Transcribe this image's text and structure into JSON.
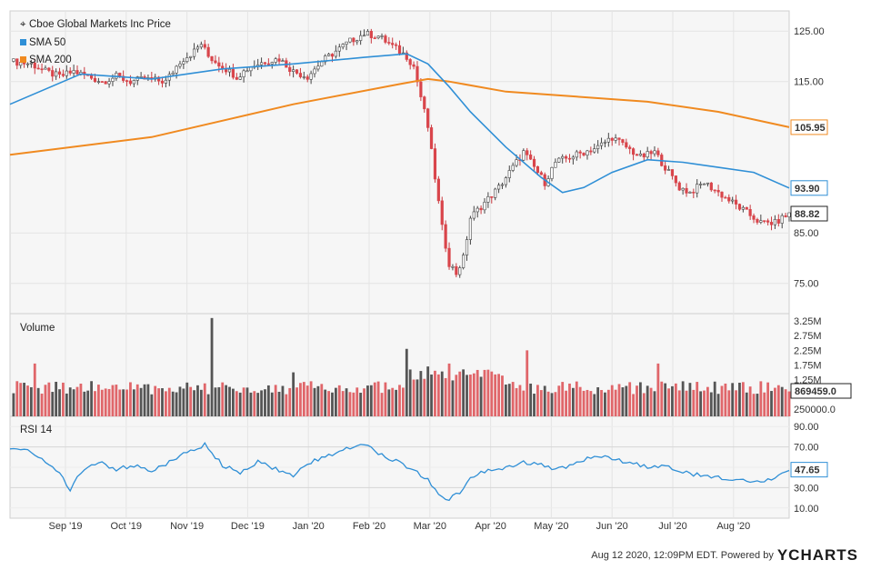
{
  "chart_data": {
    "type": "candlestick",
    "title": "Cboe Global Markets Inc Price",
    "legend": [
      {
        "name": "SMA 50",
        "color": "#2f8fd6"
      },
      {
        "name": "SMA 200",
        "color": "#f08a20"
      }
    ],
    "x_ticks": [
      "Sep '19",
      "Oct '19",
      "Nov '19",
      "Dec '19",
      "Jan '20",
      "Feb '20",
      "Mar '20",
      "Apr '20",
      "May '20",
      "Jun '20",
      "Jul '20",
      "Aug '20"
    ],
    "price_axis": {
      "ticks": [
        "125.00",
        "115.00",
        "85.00",
        "75.00"
      ],
      "ylim": [
        69,
        129
      ]
    },
    "price_series": {
      "close": [
        {
          "x": 0,
          "y": 119
        },
        {
          "x": 6,
          "y": 118.5
        },
        {
          "x": 10,
          "y": 117
        },
        {
          "x": 14,
          "y": 116
        },
        {
          "x": 18,
          "y": 117
        },
        {
          "x": 22,
          "y": 116
        },
        {
          "x": 26,
          "y": 115
        },
        {
          "x": 30,
          "y": 116
        },
        {
          "x": 34,
          "y": 115
        },
        {
          "x": 38,
          "y": 115.5
        },
        {
          "x": 44,
          "y": 115
        },
        {
          "x": 48,
          "y": 119
        },
        {
          "x": 52,
          "y": 121
        },
        {
          "x": 54,
          "y": 122.5
        },
        {
          "x": 56,
          "y": 120
        },
        {
          "x": 60,
          "y": 118
        },
        {
          "x": 64,
          "y": 116
        },
        {
          "x": 68,
          "y": 118
        },
        {
          "x": 72,
          "y": 119
        },
        {
          "x": 76,
          "y": 119.5
        },
        {
          "x": 80,
          "y": 117
        },
        {
          "x": 84,
          "y": 116
        },
        {
          "x": 88,
          "y": 119
        },
        {
          "x": 92,
          "y": 121
        },
        {
          "x": 96,
          "y": 123
        },
        {
          "x": 100,
          "y": 124.5
        },
        {
          "x": 104,
          "y": 124
        },
        {
          "x": 108,
          "y": 122
        },
        {
          "x": 112,
          "y": 120
        },
        {
          "x": 114,
          "y": 118
        },
        {
          "x": 116,
          "y": 112
        },
        {
          "x": 118,
          "y": 106
        },
        {
          "x": 120,
          "y": 96
        },
        {
          "x": 122,
          "y": 86
        },
        {
          "x": 124,
          "y": 79
        },
        {
          "x": 126,
          "y": 77
        },
        {
          "x": 128,
          "y": 80
        },
        {
          "x": 130,
          "y": 88
        },
        {
          "x": 134,
          "y": 91
        },
        {
          "x": 138,
          "y": 94
        },
        {
          "x": 142,
          "y": 98
        },
        {
          "x": 145,
          "y": 101
        },
        {
          "x": 148,
          "y": 98
        },
        {
          "x": 151,
          "y": 95
        },
        {
          "x": 154,
          "y": 99
        },
        {
          "x": 158,
          "y": 100
        },
        {
          "x": 162,
          "y": 101
        },
        {
          "x": 166,
          "y": 102
        },
        {
          "x": 170,
          "y": 104
        },
        {
          "x": 174,
          "y": 102
        },
        {
          "x": 178,
          "y": 100
        },
        {
          "x": 182,
          "y": 101
        },
        {
          "x": 184,
          "y": 99
        },
        {
          "x": 186,
          "y": 97
        },
        {
          "x": 189,
          "y": 94
        },
        {
          "x": 192,
          "y": 93
        },
        {
          "x": 196,
          "y": 95
        },
        {
          "x": 200,
          "y": 93
        },
        {
          "x": 204,
          "y": 91
        },
        {
          "x": 208,
          "y": 89
        },
        {
          "x": 212,
          "y": 87
        },
        {
          "x": 216,
          "y": 87
        },
        {
          "x": 220,
          "y": 88.82
        }
      ],
      "sma50": [
        {
          "x": 0,
          "y": 110.5
        },
        {
          "x": 20,
          "y": 116.5
        },
        {
          "x": 40,
          "y": 115.5
        },
        {
          "x": 60,
          "y": 117.5
        },
        {
          "x": 80,
          "y": 118.5
        },
        {
          "x": 100,
          "y": 119.8
        },
        {
          "x": 112,
          "y": 120.5
        },
        {
          "x": 118,
          "y": 118.5
        },
        {
          "x": 124,
          "y": 114
        },
        {
          "x": 130,
          "y": 109
        },
        {
          "x": 140,
          "y": 102
        },
        {
          "x": 150,
          "y": 96
        },
        {
          "x": 156,
          "y": 93
        },
        {
          "x": 162,
          "y": 94
        },
        {
          "x": 170,
          "y": 97
        },
        {
          "x": 180,
          "y": 99.5
        },
        {
          "x": 190,
          "y": 99
        },
        {
          "x": 200,
          "y": 98
        },
        {
          "x": 210,
          "y": 97
        },
        {
          "x": 220,
          "y": 93.9
        }
      ],
      "sma200": [
        {
          "x": 0,
          "y": 100.5
        },
        {
          "x": 40,
          "y": 104
        },
        {
          "x": 80,
          "y": 110.5
        },
        {
          "x": 110,
          "y": 114.5
        },
        {
          "x": 118,
          "y": 115.5
        },
        {
          "x": 124,
          "y": 115
        },
        {
          "x": 140,
          "y": 113
        },
        {
          "x": 160,
          "y": 112
        },
        {
          "x": 180,
          "y": 111
        },
        {
          "x": 200,
          "y": 109
        },
        {
          "x": 220,
          "y": 105.95
        }
      ]
    },
    "last_values": {
      "sma200": "105.95",
      "sma50": "93.90",
      "price": "88.82"
    },
    "volume_panel": {
      "title": "Volume",
      "ticks": [
        "3.25M",
        "2.75M",
        "2.25M",
        "1.75M",
        "1.25M",
        "250000.0"
      ],
      "ylim": [
        0,
        3500000
      ],
      "last_value": "869459.0",
      "spikes": [
        {
          "x": 7,
          "v": 1800000
        },
        {
          "x": 23,
          "v": 1200000
        },
        {
          "x": 57,
          "v": 3350000
        },
        {
          "x": 80,
          "v": 1500000
        },
        {
          "x": 112,
          "v": 2300000
        },
        {
          "x": 118,
          "v": 1700000
        },
        {
          "x": 124,
          "v": 1800000
        },
        {
          "x": 128,
          "v": 1600000
        },
        {
          "x": 146,
          "v": 2250000
        },
        {
          "x": 183,
          "v": 1800000
        }
      ]
    },
    "rsi_panel": {
      "title": "RSI 14",
      "ticks": [
        "90.00",
        "70.00",
        "50.00",
        "30.00",
        "10.00"
      ],
      "ylim": [
        0,
        100
      ],
      "last_value": "47.65",
      "values": [
        {
          "x": 0,
          "y": 70
        },
        {
          "x": 5,
          "y": 68
        },
        {
          "x": 10,
          "y": 55
        },
        {
          "x": 15,
          "y": 40
        },
        {
          "x": 17,
          "y": 27
        },
        {
          "x": 20,
          "y": 45
        },
        {
          "x": 25,
          "y": 55
        },
        {
          "x": 30,
          "y": 48
        },
        {
          "x": 35,
          "y": 52
        },
        {
          "x": 40,
          "y": 46
        },
        {
          "x": 45,
          "y": 55
        },
        {
          "x": 50,
          "y": 65
        },
        {
          "x": 55,
          "y": 72
        },
        {
          "x": 60,
          "y": 52
        },
        {
          "x": 65,
          "y": 45
        },
        {
          "x": 70,
          "y": 55
        },
        {
          "x": 75,
          "y": 48
        },
        {
          "x": 80,
          "y": 42
        },
        {
          "x": 85,
          "y": 55
        },
        {
          "x": 90,
          "y": 62
        },
        {
          "x": 95,
          "y": 68
        },
        {
          "x": 100,
          "y": 74
        },
        {
          "x": 105,
          "y": 62
        },
        {
          "x": 110,
          "y": 55
        },
        {
          "x": 115,
          "y": 45
        },
        {
          "x": 118,
          "y": 38
        },
        {
          "x": 121,
          "y": 22
        },
        {
          "x": 124,
          "y": 19
        },
        {
          "x": 127,
          "y": 25
        },
        {
          "x": 130,
          "y": 40
        },
        {
          "x": 135,
          "y": 48
        },
        {
          "x": 140,
          "y": 50
        },
        {
          "x": 145,
          "y": 55
        },
        {
          "x": 150,
          "y": 52
        },
        {
          "x": 155,
          "y": 48
        },
        {
          "x": 160,
          "y": 55
        },
        {
          "x": 165,
          "y": 62
        },
        {
          "x": 170,
          "y": 58
        },
        {
          "x": 175,
          "y": 55
        },
        {
          "x": 180,
          "y": 50
        },
        {
          "x": 185,
          "y": 52
        },
        {
          "x": 190,
          "y": 45
        },
        {
          "x": 195,
          "y": 42
        },
        {
          "x": 200,
          "y": 40
        },
        {
          "x": 205,
          "y": 38
        },
        {
          "x": 210,
          "y": 35
        },
        {
          "x": 215,
          "y": 38
        },
        {
          "x": 220,
          "y": 47.65
        }
      ]
    }
  },
  "footer": {
    "timestamp": "Aug 12 2020, 12:09PM EDT.  Powered by",
    "brand": "YCHARTS"
  }
}
